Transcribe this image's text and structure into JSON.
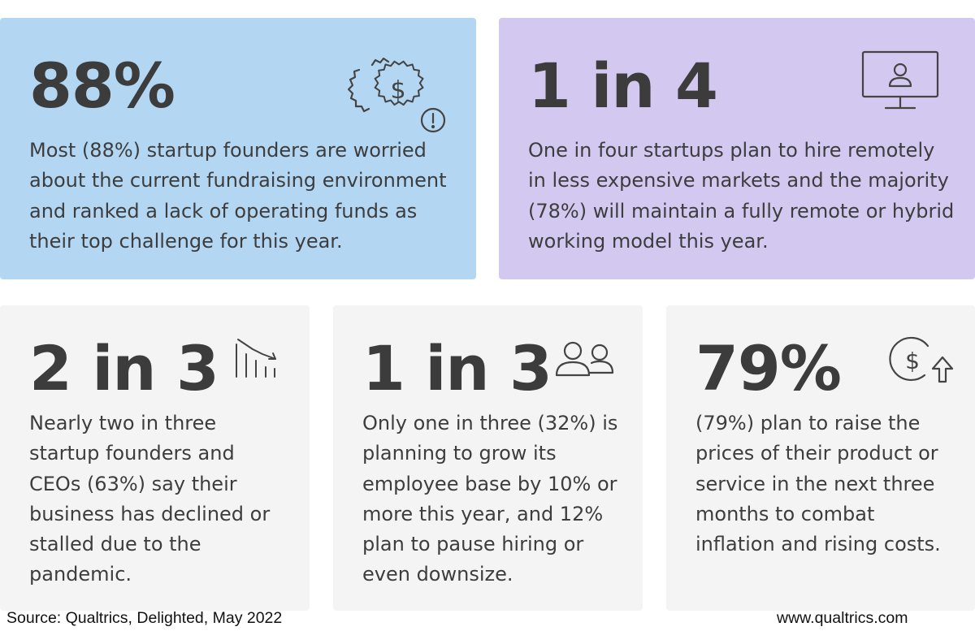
{
  "cards": [
    {
      "stat": "88%",
      "text": "Most (88%) startup founders are worried about the current fundraising environment and ranked a lack of operating funds as their top challenge for this year.",
      "icon": "gear-dollar-alert-icon",
      "color": "#b3d7f2"
    },
    {
      "stat": "1 in 4",
      "text": "One in four startups plan to hire remotely in less expensive markets and the majority (78%) will maintain a fully remote or hybrid working model this year.",
      "icon": "monitor-user-icon",
      "color": "#d3c8ef"
    },
    {
      "stat": "2 in 3",
      "text": "Nearly two in three startup founders and CEOs (63%) say their business has declined or stalled due to the pandemic.",
      "icon": "declining-chart-icon",
      "color": "#f4f4f4"
    },
    {
      "stat": "1 in 3",
      "text": "Only one in three (32%) is planning to grow its employee base by 10% or more this year, and 12% plan to pause hiring or even downsize.",
      "icon": "people-icon",
      "color": "#f4f4f4"
    },
    {
      "stat": "79%",
      "text": "(79%) plan to raise the prices of their product or service in the next three months to combat inflation and rising costs.",
      "icon": "dollar-coin-arrow-up-icon",
      "color": "#f4f4f4"
    }
  ],
  "footer": {
    "source": "Source: Qualtrics, Delighted, May 2022",
    "website": "www.qualtrics.com"
  }
}
